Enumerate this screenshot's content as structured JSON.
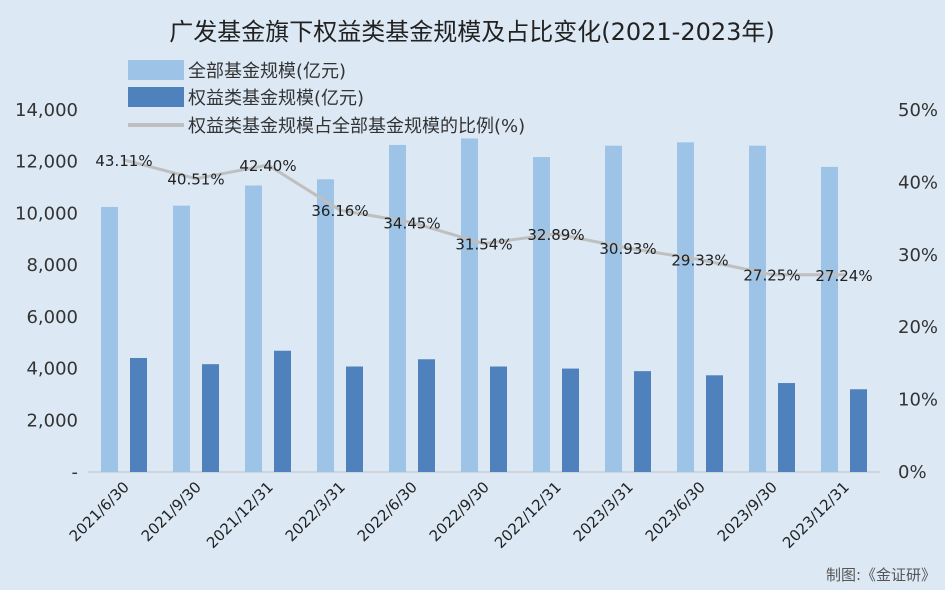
{
  "chart_data": {
    "type": "bar",
    "title": "广发基金旗下权益类基金规模及占比变化(2021-2023年)",
    "categories": [
      "2021/6/30",
      "2021/9/30",
      "2021/12/31",
      "2022/3/31",
      "2022/6/30",
      "2022/9/30",
      "2022/12/31",
      "2023/3/31",
      "2023/6/30",
      "2023/9/30",
      "2023/12/31"
    ],
    "series": [
      {
        "name": "全部基金规模(亿元)",
        "type": "bar",
        "axis": "left",
        "color": "#9dc3e6",
        "values": [
          10250,
          10300,
          11080,
          11320,
          12650,
          12900,
          12180,
          12620,
          12750,
          12620,
          11800
        ]
      },
      {
        "name": "权益类基金规模(亿元)",
        "type": "bar",
        "axis": "left",
        "color": "#4f81bd",
        "values": [
          4410,
          4170,
          4690,
          4080,
          4360,
          4080,
          4000,
          3900,
          3740,
          3440,
          3200
        ]
      },
      {
        "name": "权益类基金规模占全部基金规模的比例(%)",
        "type": "line",
        "axis": "right",
        "color": "#bfbfbf",
        "values": [
          43.11,
          40.51,
          42.4,
          36.16,
          34.45,
          31.54,
          32.89,
          30.93,
          29.33,
          27.25,
          27.24
        ],
        "labels": [
          "43.11%",
          "40.51%",
          "42.40%",
          "36.16%",
          "34.45%",
          "31.54%",
          "32.89%",
          "30.93%",
          "29.33%",
          "27.25%",
          "27.24%"
        ]
      }
    ],
    "y_left": {
      "ylim": [
        0,
        14000
      ],
      "ticks": [
        0,
        2000,
        4000,
        6000,
        8000,
        10000,
        12000,
        14000
      ],
      "tick_labels": [
        "-",
        "2,000",
        "4,000",
        "6,000",
        "8,000",
        "10,000",
        "12,000",
        "14,000"
      ]
    },
    "y_right": {
      "ylim": [
        0,
        50
      ],
      "ticks": [
        0,
        10,
        20,
        30,
        40,
        50
      ],
      "tick_labels": [
        "0%",
        "10%",
        "20%",
        "30%",
        "40%",
        "50%"
      ]
    },
    "grid": false,
    "legend_position": "top-left",
    "source": "制图:《金证研》"
  }
}
